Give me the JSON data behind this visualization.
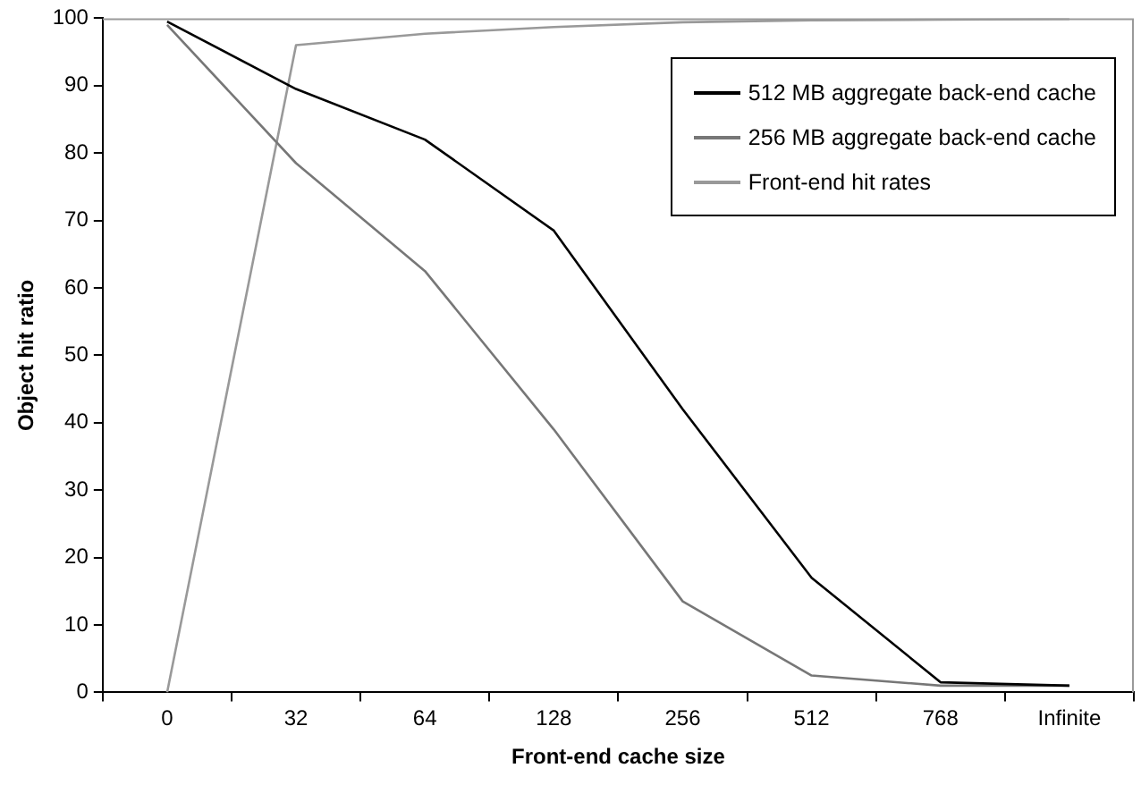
{
  "chart_data": {
    "type": "line",
    "xlabel": "Front-end cache size",
    "ylabel": "Object hit ratio",
    "categories": [
      "0",
      "32",
      "64",
      "128",
      "256",
      "512",
      "768",
      "Infinite"
    ],
    "series": [
      {
        "name": "512 MB aggregate back-end cache",
        "color": "#000000",
        "values": [
          99.5,
          89.5,
          82,
          68.5,
          42,
          17,
          1.5,
          1
        ]
      },
      {
        "name": "256 MB aggregate back-end cache",
        "color": "#777777",
        "values": [
          99,
          78.5,
          62.5,
          39,
          13.5,
          2.5,
          1,
          1
        ]
      },
      {
        "name": "Front-end hit rates",
        "color": "#999999",
        "values": [
          0,
          96,
          97.7,
          98.7,
          99.4,
          99.7,
          99.8,
          99.9
        ]
      }
    ],
    "ylim": [
      0,
      100
    ],
    "yticks": [
      0,
      10,
      20,
      30,
      40,
      50,
      60,
      70,
      80,
      90,
      100
    ],
    "grid": false,
    "legend": "top right",
    "marker": "none",
    "line_style": "solid"
  }
}
